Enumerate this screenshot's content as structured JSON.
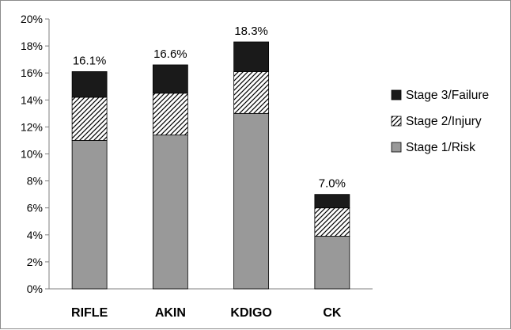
{
  "chart_data": {
    "type": "bar",
    "stacked": true,
    "categories": [
      "RIFLE",
      "AKIN",
      "KDIGO",
      "CK"
    ],
    "series": [
      {
        "name": "Stage 1/Risk",
        "values": [
          11.0,
          11.4,
          13.0,
          3.9
        ],
        "color": "#999999",
        "pattern": "solid"
      },
      {
        "name": "Stage 2/Injury",
        "values": [
          3.2,
          3.1,
          3.1,
          2.1
        ],
        "color": "#ffffff",
        "pattern": "diagonal-hatch"
      },
      {
        "name": "Stage 3/Failure",
        "values": [
          1.9,
          2.1,
          2.2,
          1.0
        ],
        "color": "#1a1a1a",
        "pattern": "solid"
      }
    ],
    "totals": [
      "16.1%",
      "16.6%",
      "18.3%",
      "7.0%"
    ],
    "yticks": [
      "0%",
      "2%",
      "4%",
      "6%",
      "8%",
      "10%",
      "12%",
      "14%",
      "16%",
      "18%",
      "20%"
    ],
    "ylim": [
      0,
      20
    ],
    "title": "",
    "xlabel": "",
    "ylabel": "",
    "legend_position": "right",
    "grid": false
  }
}
